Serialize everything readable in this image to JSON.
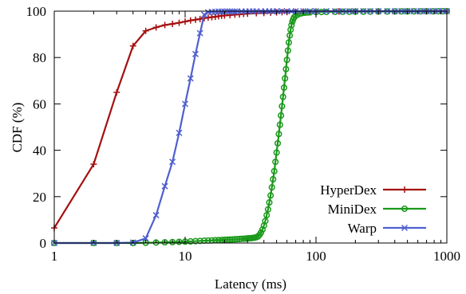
{
  "chart_data": {
    "type": "line",
    "title": "",
    "xlabel": "Latency (ms)",
    "ylabel": "CDF (%)",
    "xscale": "log",
    "xlim": [
      1,
      1000
    ],
    "ylim": [
      0,
      100
    ],
    "grid": false,
    "legend_position": "bottom-right",
    "x_ticks": [
      {
        "value": 1,
        "label": "1"
      },
      {
        "value": 10,
        "label": "10"
      },
      {
        "value": 100,
        "label": "100"
      },
      {
        "value": 1000,
        "label": "1000"
      }
    ],
    "y_ticks": [
      {
        "value": 0,
        "label": "0"
      },
      {
        "value": 20,
        "label": "20"
      },
      {
        "value": 40,
        "label": "40"
      },
      {
        "value": 60,
        "label": "60"
      },
      {
        "value": 80,
        "label": "80"
      },
      {
        "value": 100,
        "label": "100"
      }
    ],
    "series": [
      {
        "name": "HyperDex",
        "color": "#a50f0f",
        "marker": "plus",
        "points": [
          [
            1,
            6.5
          ],
          [
            2,
            34
          ],
          [
            3,
            65
          ],
          [
            4,
            85
          ],
          [
            5,
            91.5
          ],
          [
            6,
            93
          ],
          [
            7,
            94
          ],
          [
            8,
            94.5
          ],
          [
            9,
            95
          ],
          [
            10,
            95.5
          ],
          [
            11,
            96
          ],
          [
            12,
            96.3
          ],
          [
            13,
            96.6
          ],
          [
            14,
            97
          ],
          [
            15,
            97.2
          ],
          [
            16,
            97.4
          ],
          [
            17,
            97.6
          ],
          [
            18,
            97.8
          ],
          [
            19,
            98
          ],
          [
            20,
            98.1
          ],
          [
            22,
            98.3
          ],
          [
            24,
            98.5
          ],
          [
            26,
            98.6
          ],
          [
            28,
            98.8
          ],
          [
            30,
            98.9
          ],
          [
            35,
            99.1
          ],
          [
            40,
            99.2
          ],
          [
            45,
            99.35
          ],
          [
            50,
            99.45
          ],
          [
            55,
            99.55
          ],
          [
            60,
            99.6
          ],
          [
            70,
            99.7
          ],
          [
            80,
            99.8
          ],
          [
            100,
            99.85
          ],
          [
            150,
            99.9
          ],
          [
            200,
            99.93
          ],
          [
            300,
            99.95
          ],
          [
            500,
            99.97
          ],
          [
            700,
            99.99
          ],
          [
            1000,
            100
          ]
        ]
      },
      {
        "name": "MiniDex",
        "color": "#199919",
        "marker": "circle",
        "points": [
          [
            1,
            0
          ],
          [
            2,
            0
          ],
          [
            3,
            0
          ],
          [
            4,
            0
          ],
          [
            5,
            0.1
          ],
          [
            6,
            0.2
          ],
          [
            7,
            0.3
          ],
          [
            8,
            0.4
          ],
          [
            9,
            0.5
          ],
          [
            10,
            0.6
          ],
          [
            11,
            0.7
          ],
          [
            12,
            0.8
          ],
          [
            13,
            0.9
          ],
          [
            14,
            1
          ],
          [
            15,
            1.05
          ],
          [
            16,
            1.1
          ],
          [
            17,
            1.2
          ],
          [
            18,
            1.25
          ],
          [
            19,
            1.3
          ],
          [
            20,
            1.4
          ],
          [
            21,
            1.45
          ],
          [
            22,
            1.5
          ],
          [
            23,
            1.55
          ],
          [
            24,
            1.6
          ],
          [
            25,
            1.65
          ],
          [
            26,
            1.7
          ],
          [
            27,
            1.8
          ],
          [
            28,
            1.85
          ],
          [
            29,
            1.9
          ],
          [
            30,
            2
          ],
          [
            31,
            2.05
          ],
          [
            32,
            2.1
          ],
          [
            33,
            2.2
          ],
          [
            34,
            2.3
          ],
          [
            35,
            2.5
          ],
          [
            36,
            2.8
          ],
          [
            37,
            3.5
          ],
          [
            38,
            4.5
          ],
          [
            39,
            5.8
          ],
          [
            40,
            7.5
          ],
          [
            41,
            9.5
          ],
          [
            42,
            12
          ],
          [
            43,
            14.5
          ],
          [
            44,
            17.5
          ],
          [
            45,
            20.5
          ],
          [
            46,
            24
          ],
          [
            47,
            27.5
          ],
          [
            48,
            31
          ],
          [
            49,
            35
          ],
          [
            50,
            39
          ],
          [
            51,
            43
          ],
          [
            52,
            47
          ],
          [
            53,
            51
          ],
          [
            54,
            55
          ],
          [
            55,
            59
          ],
          [
            56,
            63
          ],
          [
            57,
            67
          ],
          [
            58,
            71
          ],
          [
            59,
            75
          ],
          [
            60,
            79
          ],
          [
            61,
            83
          ],
          [
            62,
            86.5
          ],
          [
            63,
            89.5
          ],
          [
            64,
            92
          ],
          [
            65,
            94
          ],
          [
            66,
            95.5
          ],
          [
            67,
            96.5
          ],
          [
            68,
            97.3
          ],
          [
            70,
            98
          ],
          [
            72,
            98.5
          ],
          [
            75,
            98.9
          ],
          [
            78,
            99.1
          ],
          [
            82,
            99.3
          ],
          [
            86,
            99.4
          ],
          [
            90,
            99.5
          ],
          [
            100,
            99.6
          ],
          [
            110,
            99.65
          ],
          [
            120,
            99.7
          ],
          [
            140,
            99.72
          ],
          [
            160,
            99.75
          ],
          [
            180,
            99.77
          ],
          [
            200,
            99.78
          ],
          [
            230,
            99.8
          ],
          [
            260,
            99.82
          ],
          [
            300,
            99.84
          ],
          [
            350,
            99.86
          ],
          [
            400,
            99.88
          ],
          [
            450,
            99.9
          ],
          [
            500,
            99.91
          ],
          [
            560,
            99.92
          ],
          [
            630,
            99.94
          ],
          [
            700,
            99.95
          ],
          [
            780,
            99.96
          ],
          [
            860,
            99.98
          ],
          [
            930,
            99.99
          ],
          [
            1000,
            100
          ]
        ]
      },
      {
        "name": "Warp",
        "color": "#4f5fcf",
        "marker": "cross",
        "points": [
          [
            1,
            0
          ],
          [
            2,
            0
          ],
          [
            3,
            0
          ],
          [
            4,
            0.2
          ],
          [
            5,
            2
          ],
          [
            6,
            12
          ],
          [
            7,
            24.5
          ],
          [
            8,
            35
          ],
          [
            9,
            47.5
          ],
          [
            10,
            60
          ],
          [
            11,
            71
          ],
          [
            12,
            81.5
          ],
          [
            13,
            90.5
          ],
          [
            14,
            98.5
          ],
          [
            15,
            99.5
          ],
          [
            16,
            99.7
          ],
          [
            17,
            99.75
          ],
          [
            18,
            99.8
          ],
          [
            19,
            99.8
          ],
          [
            20,
            99.82
          ],
          [
            21,
            99.84
          ],
          [
            22,
            99.85
          ],
          [
            23,
            99.86
          ],
          [
            24,
            99.87
          ],
          [
            25,
            99.88
          ],
          [
            27,
            99.9
          ],
          [
            29,
            99.9
          ],
          [
            31,
            99.91
          ],
          [
            33,
            99.92
          ],
          [
            35,
            99.92
          ],
          [
            38,
            99.93
          ],
          [
            41,
            99.93
          ],
          [
            44,
            99.94
          ],
          [
            47,
            99.94
          ],
          [
            50,
            99.95
          ],
          [
            55,
            99.95
          ],
          [
            60,
            99.96
          ],
          [
            65,
            99.96
          ],
          [
            70,
            99.96
          ],
          [
            80,
            99.97
          ],
          [
            90,
            99.97
          ],
          [
            100,
            99.97
          ],
          [
            120,
            99.98
          ],
          [
            140,
            99.98
          ],
          [
            160,
            99.98
          ],
          [
            180,
            99.98
          ],
          [
            200,
            99.98
          ],
          [
            230,
            99.99
          ],
          [
            260,
            99.99
          ],
          [
            300,
            99.99
          ],
          [
            350,
            99.99
          ],
          [
            400,
            99.99
          ],
          [
            450,
            99.99
          ],
          [
            500,
            100
          ],
          [
            560,
            100
          ],
          [
            630,
            100
          ],
          [
            700,
            100
          ],
          [
            780,
            100
          ],
          [
            860,
            100
          ],
          [
            930,
            100
          ],
          [
            1000,
            100
          ]
        ]
      }
    ]
  }
}
